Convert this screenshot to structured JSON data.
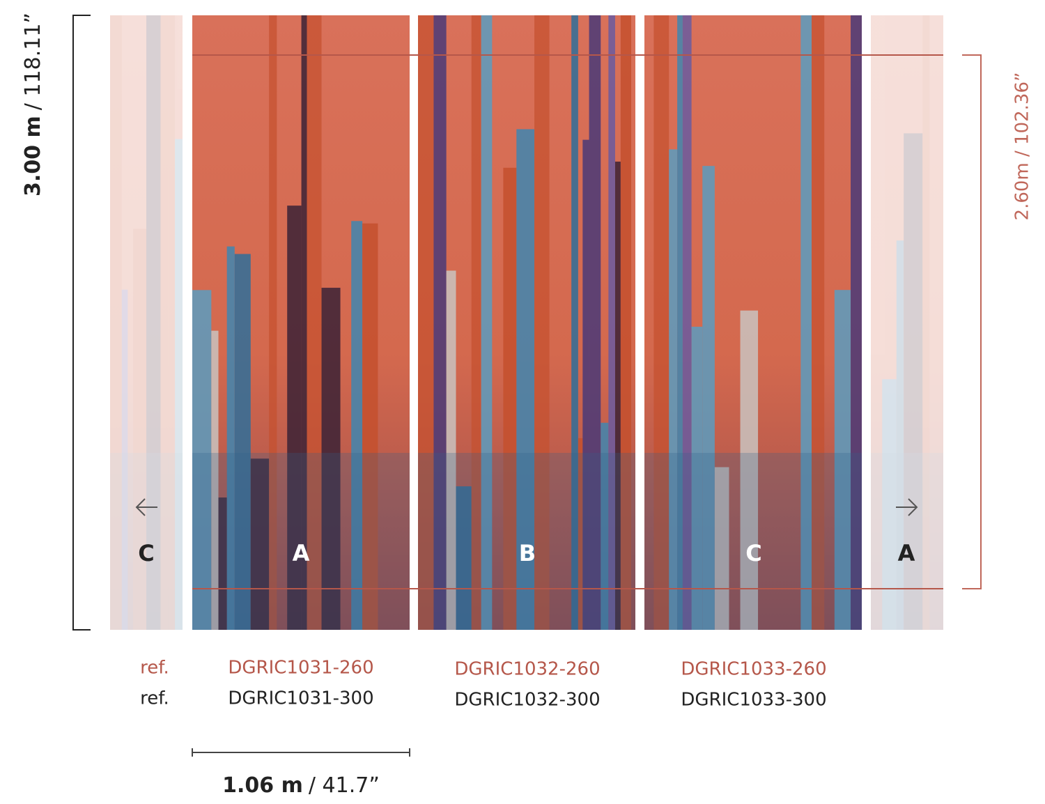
{
  "height_label": {
    "metric": "3.00 m",
    "imperial": "/ 118.11”"
  },
  "print_height_label": "2.60m / 102.36”",
  "side_letters": [
    "C",
    "A"
  ],
  "panels": [
    {
      "letter": "A",
      "ref_260": "DGRIC1031-260",
      "ref_300": "DGRIC1031-300"
    },
    {
      "letter": "B",
      "ref_260": "DGRIC1032-260",
      "ref_300": "DGRIC1032-300"
    },
    {
      "letter": "C",
      "ref_260": "DGRIC1033-260",
      "ref_300": "DGRIC1033-300"
    }
  ],
  "ref_labels": [
    "ref.",
    "ref."
  ],
  "width_label": {
    "metric": "1.06 m",
    "imperial": "/ 41.7”"
  }
}
